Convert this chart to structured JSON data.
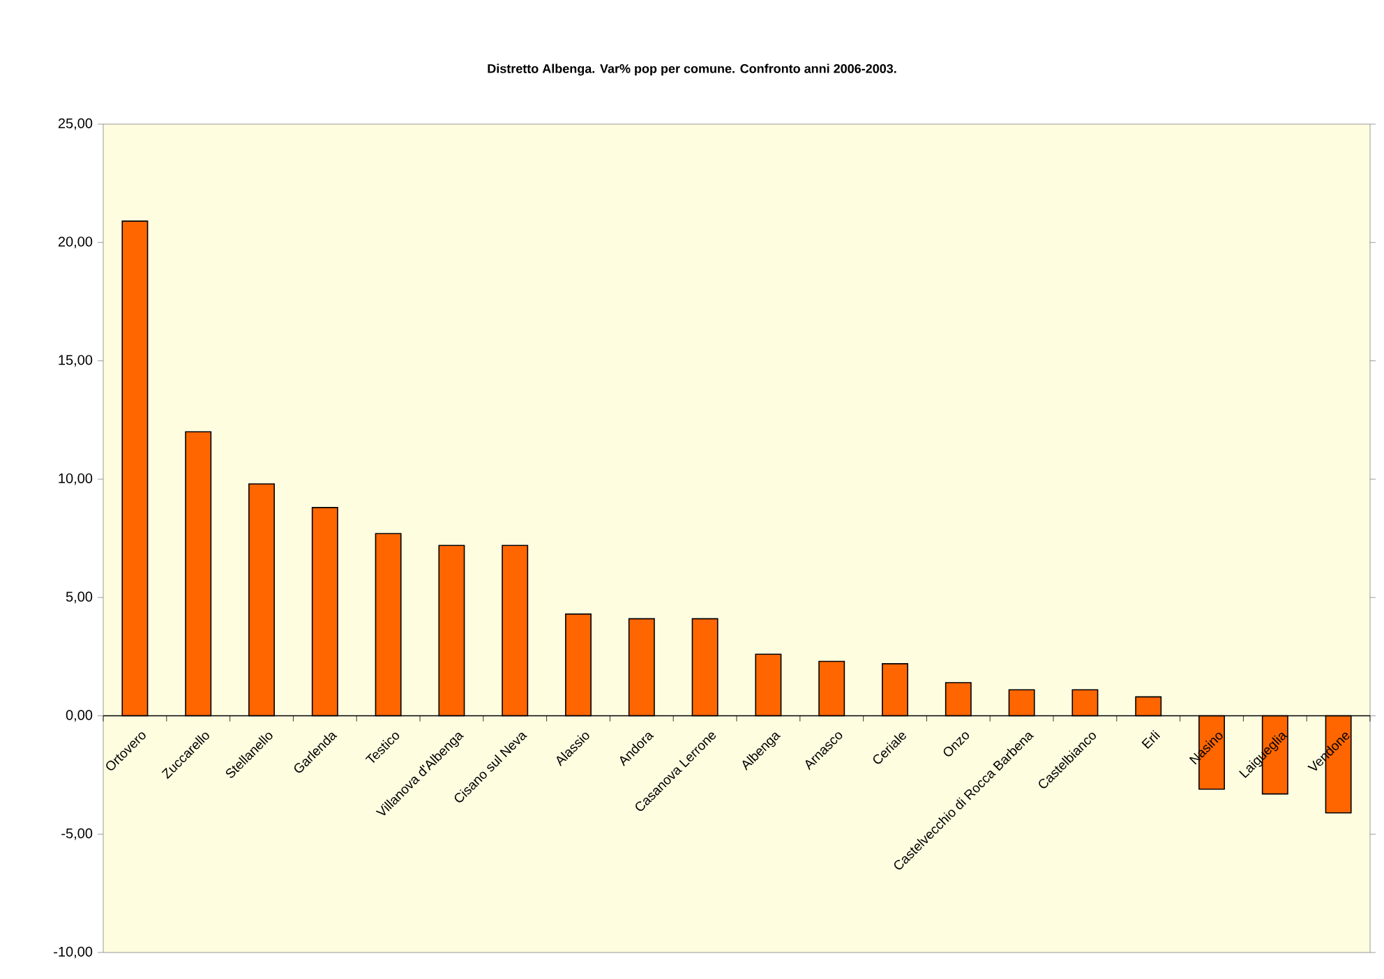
{
  "chart_data": {
    "type": "bar",
    "title": "Distretto Albenga. Var% pop per comune. Confronto anni 2006-2003.",
    "categories": [
      "Ortovero",
      "Zuccarello",
      "Stellanello",
      "Garlenda",
      "Testico",
      "Villanova d'Albenga",
      "Cisano sul Neva",
      "Alassio",
      "Andora",
      "Casanova Lerrone",
      "Albenga",
      "Arnasco",
      "Ceriale",
      "Onzo",
      "Castelvecchio di Rocca Barbena",
      "Castelbianco",
      "Erli",
      "Nasino",
      "Laigueglia",
      "Vendone"
    ],
    "values": [
      20.9,
      12.0,
      9.8,
      8.8,
      7.7,
      7.2,
      7.2,
      4.3,
      4.1,
      4.1,
      2.6,
      2.3,
      2.2,
      1.4,
      1.1,
      1.1,
      0.8,
      -3.1,
      -3.3,
      -4.1
    ],
    "color": "#ff6600",
    "ylim": [
      -10,
      25
    ],
    "yticks": [
      {
        "value": -10,
        "label": "-10,00"
      },
      {
        "value": -5,
        "label": "-5,00"
      },
      {
        "value": 0,
        "label": "0,00"
      },
      {
        "value": 5,
        "label": "5,00"
      },
      {
        "value": 10,
        "label": "10,00"
      },
      {
        "value": 15,
        "label": "15,00"
      },
      {
        "value": 20,
        "label": "20,00"
      },
      {
        "value": 25,
        "label": "25,00"
      }
    ]
  }
}
